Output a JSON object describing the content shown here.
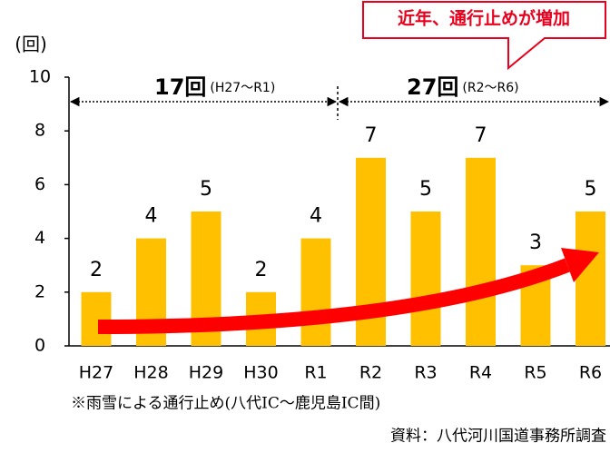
{
  "chart_data": {
    "type": "bar",
    "y_label": "(回)",
    "callout": "近年、通行止めが増加",
    "annotations": [
      {
        "count": "17回",
        "range": "(H27～R1)"
      },
      {
        "count": "27回",
        "range": "(R2～R6)"
      }
    ],
    "categories": [
      "H27",
      "H28",
      "H29",
      "H30",
      "R1",
      "R2",
      "R3",
      "R4",
      "R5",
      "R6"
    ],
    "values": [
      2,
      4,
      5,
      2,
      4,
      7,
      5,
      7,
      3,
      5
    ],
    "color": "#ffc000",
    "ylim": [
      0,
      10
    ],
    "yticks": [
      0,
      2,
      4,
      6,
      8,
      10
    ],
    "grid": false,
    "footnote": "※雨雪による通行止め(八代IC～鹿児島IC間)",
    "source": "資料：八代河川国道事務所調査"
  }
}
